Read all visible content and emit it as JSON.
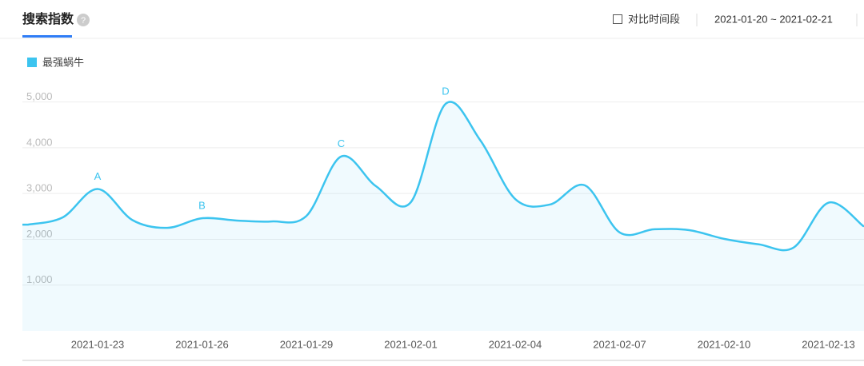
{
  "header": {
    "title": "搜索指数",
    "compare_label": "对比时间段",
    "date_range": "2021-01-20 ~ 2021-02-21"
  },
  "chart_data": {
    "type": "area-line",
    "categories": [
      null,
      null,
      "2021-01-23",
      null,
      null,
      "2021-01-26",
      null,
      null,
      "2021-01-29",
      null,
      null,
      "2021-02-01",
      null,
      null,
      "2021-02-04",
      null,
      null,
      "2021-02-07",
      null,
      null,
      "2021-02-10",
      null,
      null,
      "2021-02-13",
      null
    ],
    "series": [
      {
        "name": "最强蜗牛",
        "color": "#3cc4ef",
        "values": [
          2320,
          2480,
          3100,
          2420,
          2250,
          2460,
          2410,
          2390,
          2510,
          3810,
          3160,
          2810,
          4960,
          4160,
          2880,
          2760,
          3180,
          2150,
          2220,
          2200,
          2010,
          1890,
          1820,
          2800,
          2290
        ]
      }
    ],
    "annotations": [
      {
        "text": "A",
        "point": 2
      },
      {
        "text": "B",
        "point": 5
      },
      {
        "text": "C",
        "point": 9
      },
      {
        "text": "D",
        "point": 12
      }
    ],
    "ylim": [
      0,
      5500
    ],
    "yticks": [
      {
        "value": 1000,
        "label": "1,000"
      },
      {
        "value": 2000,
        "label": "2,000"
      },
      {
        "value": 3000,
        "label": "3,000"
      },
      {
        "value": 4000,
        "label": "4,000"
      },
      {
        "value": 5000,
        "label": "5,000"
      }
    ],
    "grid": true
  }
}
